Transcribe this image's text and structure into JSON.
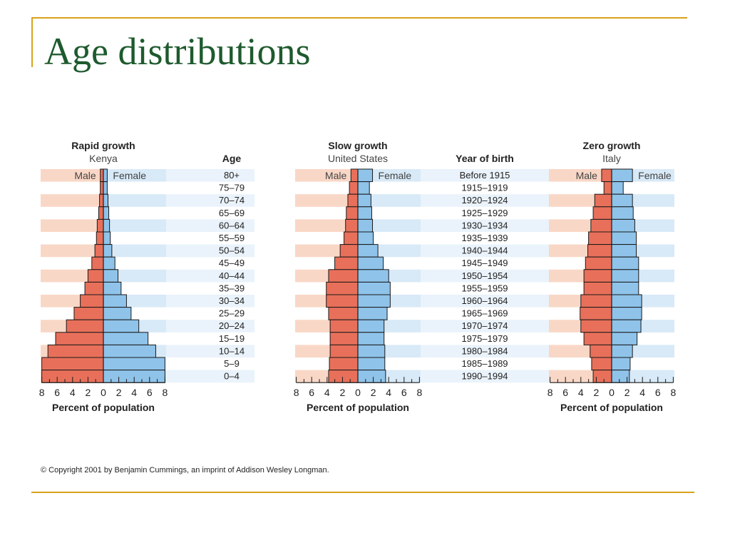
{
  "slide": {
    "title": "Age distributions",
    "copyright": "© Copyright 2001 by Benjamin Cummings, an imprint of Addison Wesley Longman."
  },
  "colors": {
    "male": "#e8705a",
    "female": "#8fc3ea",
    "male_band": "#f9d7c6",
    "female_band": "#d8e9f7",
    "title": "#1e5a2e",
    "rule": "#d9a21b"
  },
  "labels": {
    "age_header": "Age",
    "year_header": "Year of birth",
    "male": "Male",
    "female": "Female"
  },
  "age_groups": [
    "80+",
    "75–79",
    "70–74",
    "65–69",
    "60–64",
    "55–59",
    "50–54",
    "45–49",
    "40–44",
    "35–39",
    "30–34",
    "25–29",
    "20–24",
    "15–19",
    "10–14",
    "5–9",
    "0–4"
  ],
  "birth_years": [
    "Before 1915",
    "1915–1919",
    "1920–1924",
    "1925–1929",
    "1930–1934",
    "1935–1939",
    "1940–1944",
    "1945–1949",
    "1950–1954",
    "1955–1959",
    "1960–1964",
    "1965–1969",
    "1970–1974",
    "1975–1979",
    "1980–1984",
    "1985–1989",
    "1990–1994"
  ],
  "chart_data": [
    {
      "type": "bar",
      "title": "Rapid growth",
      "subtitle": "Kenya",
      "xlabel": "Percent of population",
      "x_ticks": [
        "8",
        "6",
        "4",
        "2",
        "0",
        "2",
        "4",
        "6",
        "8"
      ],
      "xlim": [
        -8,
        8
      ],
      "categories": [
        "80+",
        "75–79",
        "70–74",
        "65–69",
        "60–64",
        "55–59",
        "50–54",
        "45–49",
        "40–44",
        "35–39",
        "30–34",
        "25–29",
        "20–24",
        "15–19",
        "10–14",
        "5–9",
        "0–4"
      ],
      "series": [
        {
          "name": "Male",
          "values": [
            0.4,
            0.4,
            0.5,
            0.6,
            0.8,
            0.9,
            1.1,
            1.5,
            2.0,
            2.4,
            3.0,
            3.8,
            4.8,
            6.2,
            7.2,
            8.0,
            8.0
          ]
        },
        {
          "name": "Female",
          "values": [
            0.5,
            0.5,
            0.6,
            0.7,
            0.8,
            0.9,
            1.1,
            1.5,
            1.9,
            2.3,
            3.0,
            3.6,
            4.6,
            5.8,
            6.8,
            8.0,
            8.0
          ]
        }
      ]
    },
    {
      "type": "bar",
      "title": "Slow growth",
      "subtitle": "United States",
      "xlabel": "Percent of population",
      "x_ticks": [
        "8",
        "6",
        "4",
        "2",
        "0",
        "2",
        "4",
        "6",
        "8"
      ],
      "xlim": [
        -8,
        8
      ],
      "categories": [
        "80+",
        "75–79",
        "70–74",
        "65–69",
        "60–64",
        "55–59",
        "50–54",
        "45–49",
        "40–44",
        "35–39",
        "30–34",
        "25–29",
        "20–24",
        "15–19",
        "10–14",
        "5–9",
        "0–4"
      ],
      "series": [
        {
          "name": "Male",
          "values": [
            0.9,
            1.1,
            1.3,
            1.5,
            1.6,
            1.8,
            2.3,
            3.0,
            3.8,
            4.1,
            4.1,
            3.8,
            3.6,
            3.6,
            3.6,
            3.7,
            3.8
          ]
        },
        {
          "name": "Female",
          "values": [
            1.9,
            1.5,
            1.7,
            1.8,
            1.9,
            2.0,
            2.6,
            3.3,
            4.0,
            4.2,
            4.2,
            3.8,
            3.4,
            3.4,
            3.5,
            3.5,
            3.6
          ]
        }
      ]
    },
    {
      "type": "bar",
      "title": "Zero growth",
      "subtitle": "Italy",
      "xlabel": "Percent of population",
      "x_ticks": [
        "8",
        "6",
        "4",
        "2",
        "0",
        "2",
        "4",
        "6",
        "8"
      ],
      "xlim": [
        -8,
        8
      ],
      "categories": [
        "80+",
        "75–79",
        "70–74",
        "65–69",
        "60–64",
        "55–59",
        "50–54",
        "45–49",
        "40–44",
        "35–39",
        "30–34",
        "25–29",
        "20–24",
        "15–19",
        "10–14",
        "5–9",
        "0–4"
      ],
      "series": [
        {
          "name": "Male",
          "values": [
            1.3,
            1.0,
            2.2,
            2.4,
            2.7,
            3.0,
            3.1,
            3.4,
            3.6,
            3.6,
            4.0,
            4.1,
            4.0,
            3.6,
            2.8,
            2.6,
            2.4
          ]
        },
        {
          "name": "Female",
          "values": [
            2.7,
            1.5,
            2.7,
            2.8,
            3.0,
            3.2,
            3.2,
            3.5,
            3.5,
            3.5,
            3.9,
            3.9,
            3.8,
            3.3,
            2.7,
            2.4,
            2.3
          ]
        }
      ]
    }
  ]
}
